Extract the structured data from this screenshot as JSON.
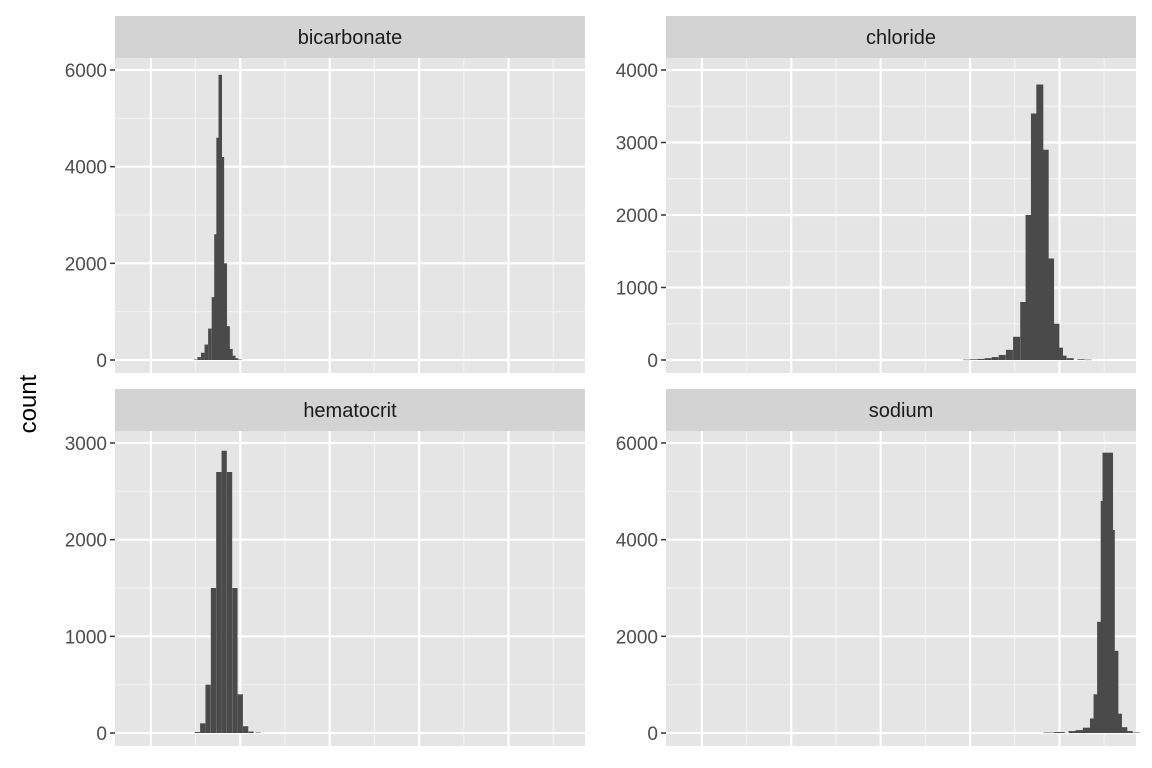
{
  "colors": {
    "panel_background": "#e5e5e5",
    "strip_background": "#d3d3d3",
    "grid_major": "#ffffff",
    "grid_minor": "#f2f2f2",
    "bar_fill": "#4a4a4a",
    "tick_text": "#4d4d4d"
  },
  "chart_data": {
    "type": "bar",
    "subtype": "faceted-histogram",
    "ylabel": "count",
    "xlabel": "",
    "x_tick_labels_shown": false,
    "x_scale": "shared",
    "y_scale": "free",
    "grid": true,
    "legend": "none",
    "panels": [
      {
        "name": "bicarbonate",
        "ylim": [
          0,
          6000
        ],
        "yticks": [
          0,
          2000,
          4000,
          6000
        ],
        "x": [
          0.125,
          0.135,
          0.145,
          0.155,
          0.165,
          0.175,
          0.182,
          0.188,
          0.194,
          0.2,
          0.208,
          0.216,
          0.224,
          0.232,
          0.24,
          0.25
        ],
        "values": [
          10,
          60,
          150,
          320,
          650,
          1300,
          2600,
          4600,
          5900,
          4200,
          2000,
          700,
          230,
          90,
          35,
          10
        ]
      },
      {
        "name": "chloride",
        "ylim": [
          0,
          4000
        ],
        "yticks": [
          0,
          1000,
          2000,
          3000,
          4000
        ],
        "x": [
          0.74,
          0.76,
          0.78,
          0.8,
          0.82,
          0.84,
          0.86,
          0.88,
          0.9,
          0.915,
          0.93,
          0.945,
          0.96,
          0.975,
          0.99,
          1.0,
          1.01,
          1.03,
          1.06,
          1.08
        ],
        "values": [
          5,
          10,
          15,
          25,
          40,
          70,
          140,
          320,
          800,
          2000,
          3400,
          3800,
          2900,
          1400,
          500,
          170,
          60,
          25,
          10,
          5
        ]
      },
      {
        "name": "hematocrit",
        "ylim": [
          0,
          3000
        ],
        "yticks": [
          0,
          1000,
          2000,
          3000
        ],
        "x": [
          0.13,
          0.145,
          0.16,
          0.175,
          0.19,
          0.205,
          0.22,
          0.235,
          0.25,
          0.265,
          0.28,
          0.3
        ],
        "values": [
          10,
          100,
          500,
          1500,
          2700,
          2920,
          2700,
          1500,
          400,
          70,
          15,
          5
        ]
      },
      {
        "name": "sodium",
        "ylim": [
          0,
          6000
        ],
        "yticks": [
          0,
          2000,
          4000,
          6000
        ],
        "x": [
          0.97,
          1.0,
          1.04,
          1.06,
          1.08,
          1.1,
          1.11,
          1.12,
          1.13,
          1.135,
          1.14,
          1.15,
          1.16,
          1.175,
          1.19,
          1.21
        ],
        "values": [
          10,
          20,
          40,
          60,
          110,
          300,
          800,
          2300,
          4800,
          5800,
          4200,
          1700,
          400,
          120,
          40,
          10
        ]
      }
    ]
  }
}
